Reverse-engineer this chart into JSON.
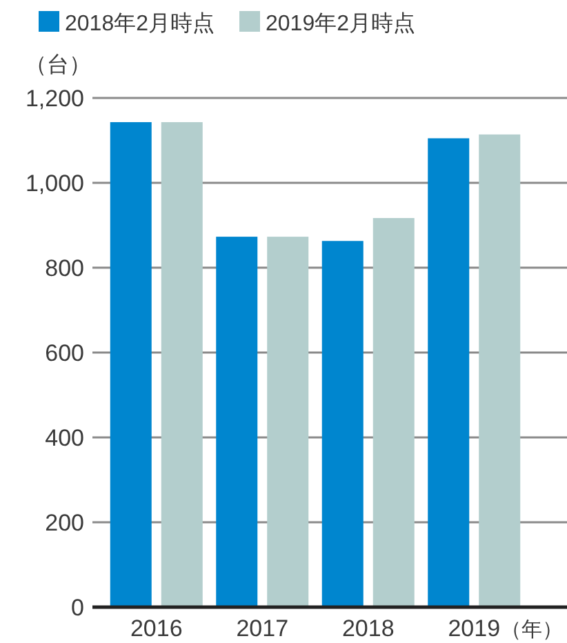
{
  "chart_data": {
    "type": "bar",
    "ylabel": "（台）",
    "xlabel": "（年）",
    "categories": [
      "2016",
      "2017",
      "2018",
      "2019"
    ],
    "series": [
      {
        "name": "2018年2月時点",
        "color": "#0086cf",
        "values": [
          1143,
          873,
          863,
          1105
        ]
      },
      {
        "name": "2019年2月時点",
        "color": "#b3cecd",
        "values": [
          1143,
          873,
          917,
          1114
        ]
      }
    ],
    "ylim": [
      0,
      1200
    ],
    "yticks": [
      0,
      200,
      400,
      600,
      800,
      {
        "value": 1000,
        "label": "1,000"
      },
      {
        "value": 1200,
        "label": "1,200"
      }
    ],
    "grid": "y",
    "legend": "top left"
  }
}
